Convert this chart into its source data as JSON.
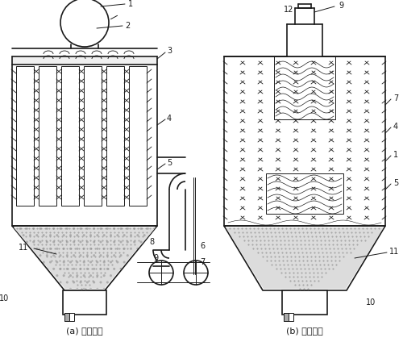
{
  "label_a": "(a) 上进气式",
  "label_b": "(b) 下进气式",
  "bg_color": "#ffffff",
  "line_color": "#1a1a1a",
  "fig_width": 5.0,
  "fig_height": 4.24,
  "dpi": 100
}
